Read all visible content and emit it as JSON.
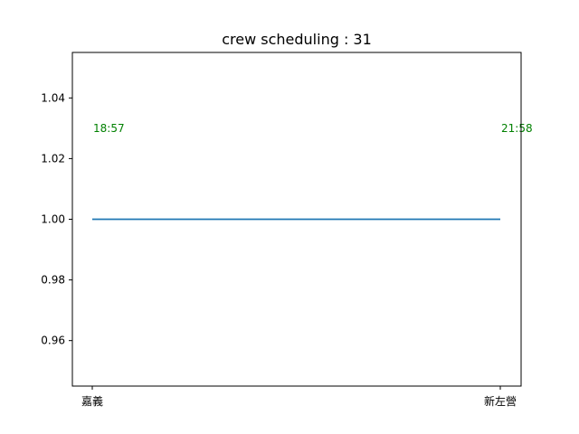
{
  "chart_data": {
    "type": "line",
    "title": "crew scheduling : 31",
    "xlabel": "",
    "ylabel": "",
    "categories": [
      "嘉義",
      "新左營"
    ],
    "series": [
      {
        "values": [
          1.0,
          1.0
        ],
        "color": "#1f77b4"
      }
    ],
    "ylim": [
      0.945,
      1.055
    ],
    "yticks": [
      0.96,
      0.98,
      1.0,
      1.02,
      1.04
    ],
    "ytick_labels": [
      "0.96",
      "0.98",
      "1.00",
      "1.02",
      "1.04"
    ],
    "annotations": [
      {
        "text": "18:57",
        "x": "嘉義",
        "y": 1.03,
        "color": "#008000"
      },
      {
        "text": "21:58",
        "x": "新左營",
        "y": 1.03,
        "color": "#008000"
      }
    ],
    "grid": false,
    "legend": "none"
  }
}
